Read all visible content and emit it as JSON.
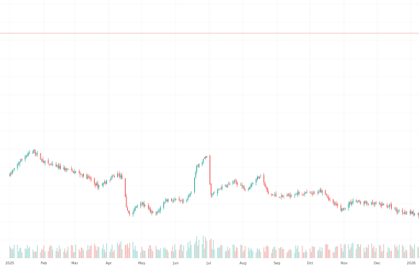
{
  "chart_data": {
    "type": "candlestick",
    "title": "",
    "xlabel": "",
    "ylabel": "",
    "grid": true,
    "legend": "none",
    "x_tick_labels": [
      "2025",
      "Feb",
      "Mar",
      "Apr",
      "May",
      "Jun",
      "Jul",
      "Aug",
      "Sep",
      "Oct",
      "Nov",
      "Dec",
      "2026"
    ],
    "x_tick_days": [
      0,
      31,
      59,
      90,
      120,
      151,
      181,
      212,
      243,
      273,
      304,
      334,
      365
    ],
    "price_range": [
      0,
      100
    ],
    "horizontal_line": {
      "value": 88.7,
      "color": "#f4b3b3"
    },
    "up_color": "#26a69a",
    "down_color": "#ef5350",
    "price_path": [
      [
        0,
        33.0
      ],
      [
        12,
        40.0
      ],
      [
        22,
        42.5
      ],
      [
        30,
        38.5
      ],
      [
        40,
        36.5
      ],
      [
        52,
        35.2
      ],
      [
        63,
        33.8
      ],
      [
        73,
        31.6
      ],
      [
        80,
        28.7
      ],
      [
        88,
        30.5
      ],
      [
        98,
        33.5
      ],
      [
        103,
        31.6
      ],
      [
        106,
        20.0
      ],
      [
        110,
        17.0
      ],
      [
        118,
        23.0
      ],
      [
        125,
        20.0
      ],
      [
        132,
        17.0
      ],
      [
        142,
        23.5
      ],
      [
        152,
        23.0
      ],
      [
        160,
        22.0
      ],
      [
        165,
        27.0
      ],
      [
        170,
        36.0
      ],
      [
        176,
        39.0
      ],
      [
        180,
        40.5
      ],
      [
        183,
        25.0
      ],
      [
        192,
        28.0
      ],
      [
        205,
        30.5
      ],
      [
        215,
        27.5
      ],
      [
        222,
        30.5
      ],
      [
        228,
        33.3
      ],
      [
        235,
        25.5
      ],
      [
        248,
        24.5
      ],
      [
        262,
        26.0
      ],
      [
        275,
        25.5
      ],
      [
        285,
        27.5
      ],
      [
        292,
        22.5
      ],
      [
        302,
        19.5
      ],
      [
        312,
        23.0
      ],
      [
        325,
        22.0
      ],
      [
        335,
        21.5
      ],
      [
        345,
        21.0
      ],
      [
        352,
        19.0
      ],
      [
        362,
        18.5
      ],
      [
        372,
        17.5
      ],
      [
        385,
        19.0
      ],
      [
        398,
        19.8
      ]
    ],
    "volume_path": [
      [
        0,
        14
      ],
      [
        50,
        13
      ],
      [
        100,
        16
      ],
      [
        106,
        26
      ],
      [
        110,
        20
      ],
      [
        120,
        13
      ],
      [
        150,
        14
      ],
      [
        175,
        24
      ],
      [
        180,
        22
      ],
      [
        190,
        14
      ],
      [
        240,
        13
      ],
      [
        290,
        14
      ],
      [
        320,
        16
      ],
      [
        360,
        14
      ],
      [
        398,
        15
      ]
    ],
    "volume_max": 60
  }
}
